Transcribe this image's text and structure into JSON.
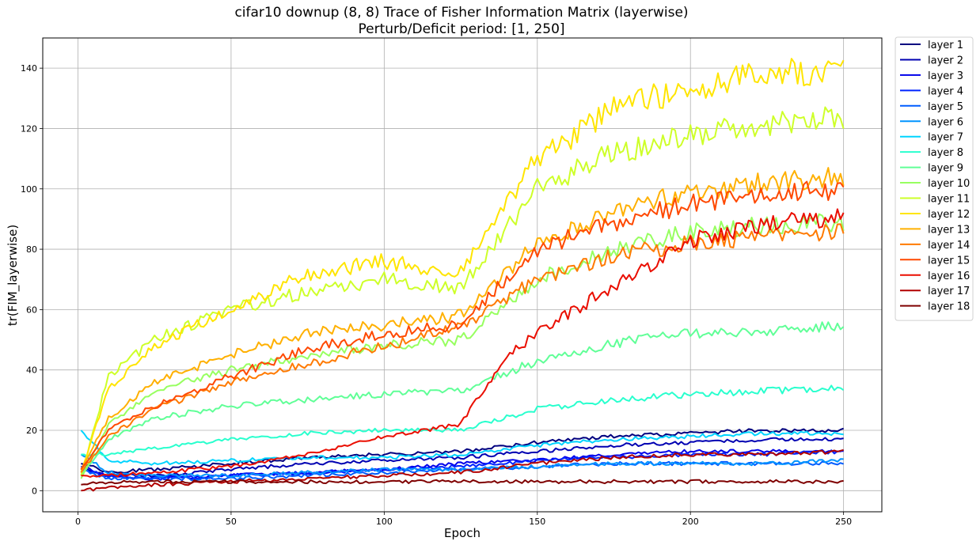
{
  "chart_data": {
    "type": "line",
    "title": "cifar10 downup (8, 8) Trace of Fisher Information Matrix (layerwise)",
    "subtitle": "Perturb/Deficit period: [1, 250]",
    "xlabel": "Epoch",
    "ylabel": "tr(FIM_layerwise)",
    "xlim": [
      -11.5,
      262.5
    ],
    "ylim": [
      -7,
      150
    ],
    "xticks": [
      0,
      50,
      100,
      150,
      200,
      250
    ],
    "yticks": [
      0,
      20,
      40,
      60,
      80,
      100,
      120,
      140
    ],
    "grid": true,
    "legend_position": "outside-right",
    "series": [
      {
        "name": "layer 1",
        "color": "#00007f",
        "points": [
          [
            1,
            9
          ],
          [
            10,
            6
          ],
          [
            25,
            7
          ],
          [
            50,
            9
          ],
          [
            75,
            11
          ],
          [
            100,
            12
          ],
          [
            125,
            13
          ],
          [
            150,
            16
          ],
          [
            175,
            18
          ],
          [
            200,
            19
          ],
          [
            225,
            20
          ],
          [
            250,
            20
          ]
        ]
      },
      {
        "name": "layer 2",
        "color": "#0000b2",
        "points": [
          [
            1,
            8
          ],
          [
            10,
            5
          ],
          [
            25,
            5
          ],
          [
            50,
            7
          ],
          [
            75,
            9
          ],
          [
            100,
            10
          ],
          [
            125,
            11
          ],
          [
            150,
            13
          ],
          [
            175,
            15
          ],
          [
            200,
            16
          ],
          [
            225,
            17
          ],
          [
            250,
            17
          ]
        ]
      },
      {
        "name": "layer 3",
        "color": "#0000ea",
        "points": [
          [
            1,
            8
          ],
          [
            10,
            5
          ],
          [
            25,
            4
          ],
          [
            50,
            5
          ],
          [
            75,
            6
          ],
          [
            100,
            7
          ],
          [
            125,
            9
          ],
          [
            150,
            10
          ],
          [
            175,
            12
          ],
          [
            200,
            13
          ],
          [
            225,
            13
          ],
          [
            250,
            13
          ]
        ]
      },
      {
        "name": "layer 4",
        "color": "#0024ff",
        "points": [
          [
            1,
            7
          ],
          [
            10,
            5
          ],
          [
            25,
            4
          ],
          [
            50,
            5
          ],
          [
            75,
            6
          ],
          [
            100,
            7
          ],
          [
            125,
            8
          ],
          [
            150,
            10
          ],
          [
            175,
            11
          ],
          [
            200,
            12
          ],
          [
            225,
            12
          ],
          [
            250,
            13
          ]
        ]
      },
      {
        "name": "layer 5",
        "color": "#005cff",
        "points": [
          [
            1,
            7
          ],
          [
            10,
            4
          ],
          [
            25,
            4
          ],
          [
            50,
            4
          ],
          [
            75,
            5
          ],
          [
            100,
            6
          ],
          [
            125,
            7
          ],
          [
            150,
            8
          ],
          [
            175,
            9
          ],
          [
            200,
            9
          ],
          [
            225,
            9
          ],
          [
            250,
            9
          ]
        ]
      },
      {
        "name": "layer 6",
        "color": "#0094ff",
        "points": [
          [
            1,
            12
          ],
          [
            10,
            6
          ],
          [
            25,
            5
          ],
          [
            50,
            5
          ],
          [
            75,
            6
          ],
          [
            100,
            7
          ],
          [
            125,
            7
          ],
          [
            150,
            8
          ],
          [
            175,
            9
          ],
          [
            200,
            9
          ],
          [
            225,
            9
          ],
          [
            250,
            10
          ]
        ]
      },
      {
        "name": "layer 7",
        "color": "#00d4ff",
        "points": [
          [
            1,
            20
          ],
          [
            10,
            10
          ],
          [
            25,
            9
          ],
          [
            50,
            10
          ],
          [
            75,
            11
          ],
          [
            100,
            11
          ],
          [
            125,
            12
          ],
          [
            150,
            15
          ],
          [
            175,
            17
          ],
          [
            200,
            18
          ],
          [
            225,
            19
          ],
          [
            250,
            19
          ]
        ]
      },
      {
        "name": "layer 8",
        "color": "#29ffce",
        "points": [
          [
            1,
            12
          ],
          [
            10,
            12
          ],
          [
            25,
            14
          ],
          [
            50,
            17
          ],
          [
            75,
            19
          ],
          [
            100,
            20
          ],
          [
            125,
            20
          ],
          [
            150,
            27
          ],
          [
            175,
            30
          ],
          [
            200,
            32
          ],
          [
            225,
            33
          ],
          [
            250,
            34
          ]
        ]
      },
      {
        "name": "layer 9",
        "color": "#60ff97",
        "points": [
          [
            1,
            5
          ],
          [
            10,
            17
          ],
          [
            25,
            24
          ],
          [
            50,
            28
          ],
          [
            75,
            30
          ],
          [
            100,
            32
          ],
          [
            125,
            33
          ],
          [
            150,
            43
          ],
          [
            175,
            49
          ],
          [
            200,
            52
          ],
          [
            225,
            53
          ],
          [
            250,
            55
          ]
        ]
      },
      {
        "name": "layer 10",
        "color": "#97ff60",
        "points": [
          [
            1,
            4
          ],
          [
            10,
            22
          ],
          [
            25,
            33
          ],
          [
            50,
            40
          ],
          [
            75,
            45
          ],
          [
            100,
            48
          ],
          [
            125,
            50
          ],
          [
            150,
            70
          ],
          [
            175,
            80
          ],
          [
            200,
            86
          ],
          [
            225,
            88
          ],
          [
            250,
            89
          ]
        ]
      },
      {
        "name": "layer 11",
        "color": "#ceff29",
        "points": [
          [
            1,
            5
          ],
          [
            10,
            38
          ],
          [
            25,
            50
          ],
          [
            50,
            60
          ],
          [
            75,
            66
          ],
          [
            100,
            70
          ],
          [
            125,
            67
          ],
          [
            150,
            100
          ],
          [
            175,
            112
          ],
          [
            200,
            118
          ],
          [
            225,
            121
          ],
          [
            250,
            124
          ]
        ]
      },
      {
        "name": "layer 12",
        "color": "#ffe500",
        "points": [
          [
            1,
            6
          ],
          [
            10,
            34
          ],
          [
            25,
            48
          ],
          [
            50,
            60
          ],
          [
            75,
            72
          ],
          [
            100,
            76
          ],
          [
            125,
            72
          ],
          [
            150,
            110
          ],
          [
            175,
            126
          ],
          [
            200,
            134
          ],
          [
            225,
            138
          ],
          [
            250,
            140
          ]
        ]
      },
      {
        "name": "layer 13",
        "color": "#ffb000",
        "points": [
          [
            1,
            7
          ],
          [
            10,
            24
          ],
          [
            25,
            36
          ],
          [
            50,
            45
          ],
          [
            75,
            52
          ],
          [
            100,
            55
          ],
          [
            125,
            58
          ],
          [
            150,
            82
          ],
          [
            175,
            93
          ],
          [
            200,
            99
          ],
          [
            225,
            102
          ],
          [
            250,
            104
          ]
        ]
      },
      {
        "name": "layer 14",
        "color": "#ff7a00",
        "points": [
          [
            1,
            6
          ],
          [
            10,
            18
          ],
          [
            25,
            27
          ],
          [
            50,
            36
          ],
          [
            75,
            42
          ],
          [
            100,
            48
          ],
          [
            125,
            54
          ],
          [
            150,
            70
          ],
          [
            175,
            78
          ],
          [
            200,
            82
          ],
          [
            225,
            84
          ],
          [
            250,
            86
          ]
        ]
      },
      {
        "name": "layer 15",
        "color": "#ff4800",
        "points": [
          [
            1,
            7
          ],
          [
            10,
            20
          ],
          [
            25,
            28
          ],
          [
            50,
            38
          ],
          [
            75,
            47
          ],
          [
            100,
            52
          ],
          [
            125,
            55
          ],
          [
            150,
            80
          ],
          [
            175,
            89
          ],
          [
            200,
            95
          ],
          [
            225,
            98
          ],
          [
            250,
            100
          ]
        ]
      },
      {
        "name": "layer 16",
        "color": "#ea0e00",
        "points": [
          [
            1,
            5
          ],
          [
            10,
            5
          ],
          [
            25,
            6
          ],
          [
            50,
            8
          ],
          [
            75,
            12
          ],
          [
            100,
            18
          ],
          [
            125,
            22
          ],
          [
            140,
            45
          ],
          [
            150,
            52
          ],
          [
            175,
            68
          ],
          [
            200,
            83
          ],
          [
            225,
            88
          ],
          [
            250,
            91
          ]
        ]
      },
      {
        "name": "layer 17",
        "color": "#b20000",
        "points": [
          [
            1,
            0
          ],
          [
            10,
            1
          ],
          [
            25,
            2
          ],
          [
            50,
            3
          ],
          [
            75,
            4
          ],
          [
            100,
            5
          ],
          [
            125,
            6
          ],
          [
            150,
            9
          ],
          [
            175,
            11
          ],
          [
            200,
            12
          ],
          [
            225,
            12
          ],
          [
            250,
            13
          ]
        ]
      },
      {
        "name": "layer 18",
        "color": "#7f0000",
        "points": [
          [
            1,
            2
          ],
          [
            10,
            3
          ],
          [
            25,
            3
          ],
          [
            50,
            3
          ],
          [
            75,
            3
          ],
          [
            100,
            3
          ],
          [
            125,
            3
          ],
          [
            150,
            3
          ],
          [
            175,
            3
          ],
          [
            200,
            3
          ],
          [
            225,
            3
          ],
          [
            250,
            3
          ]
        ]
      }
    ]
  }
}
